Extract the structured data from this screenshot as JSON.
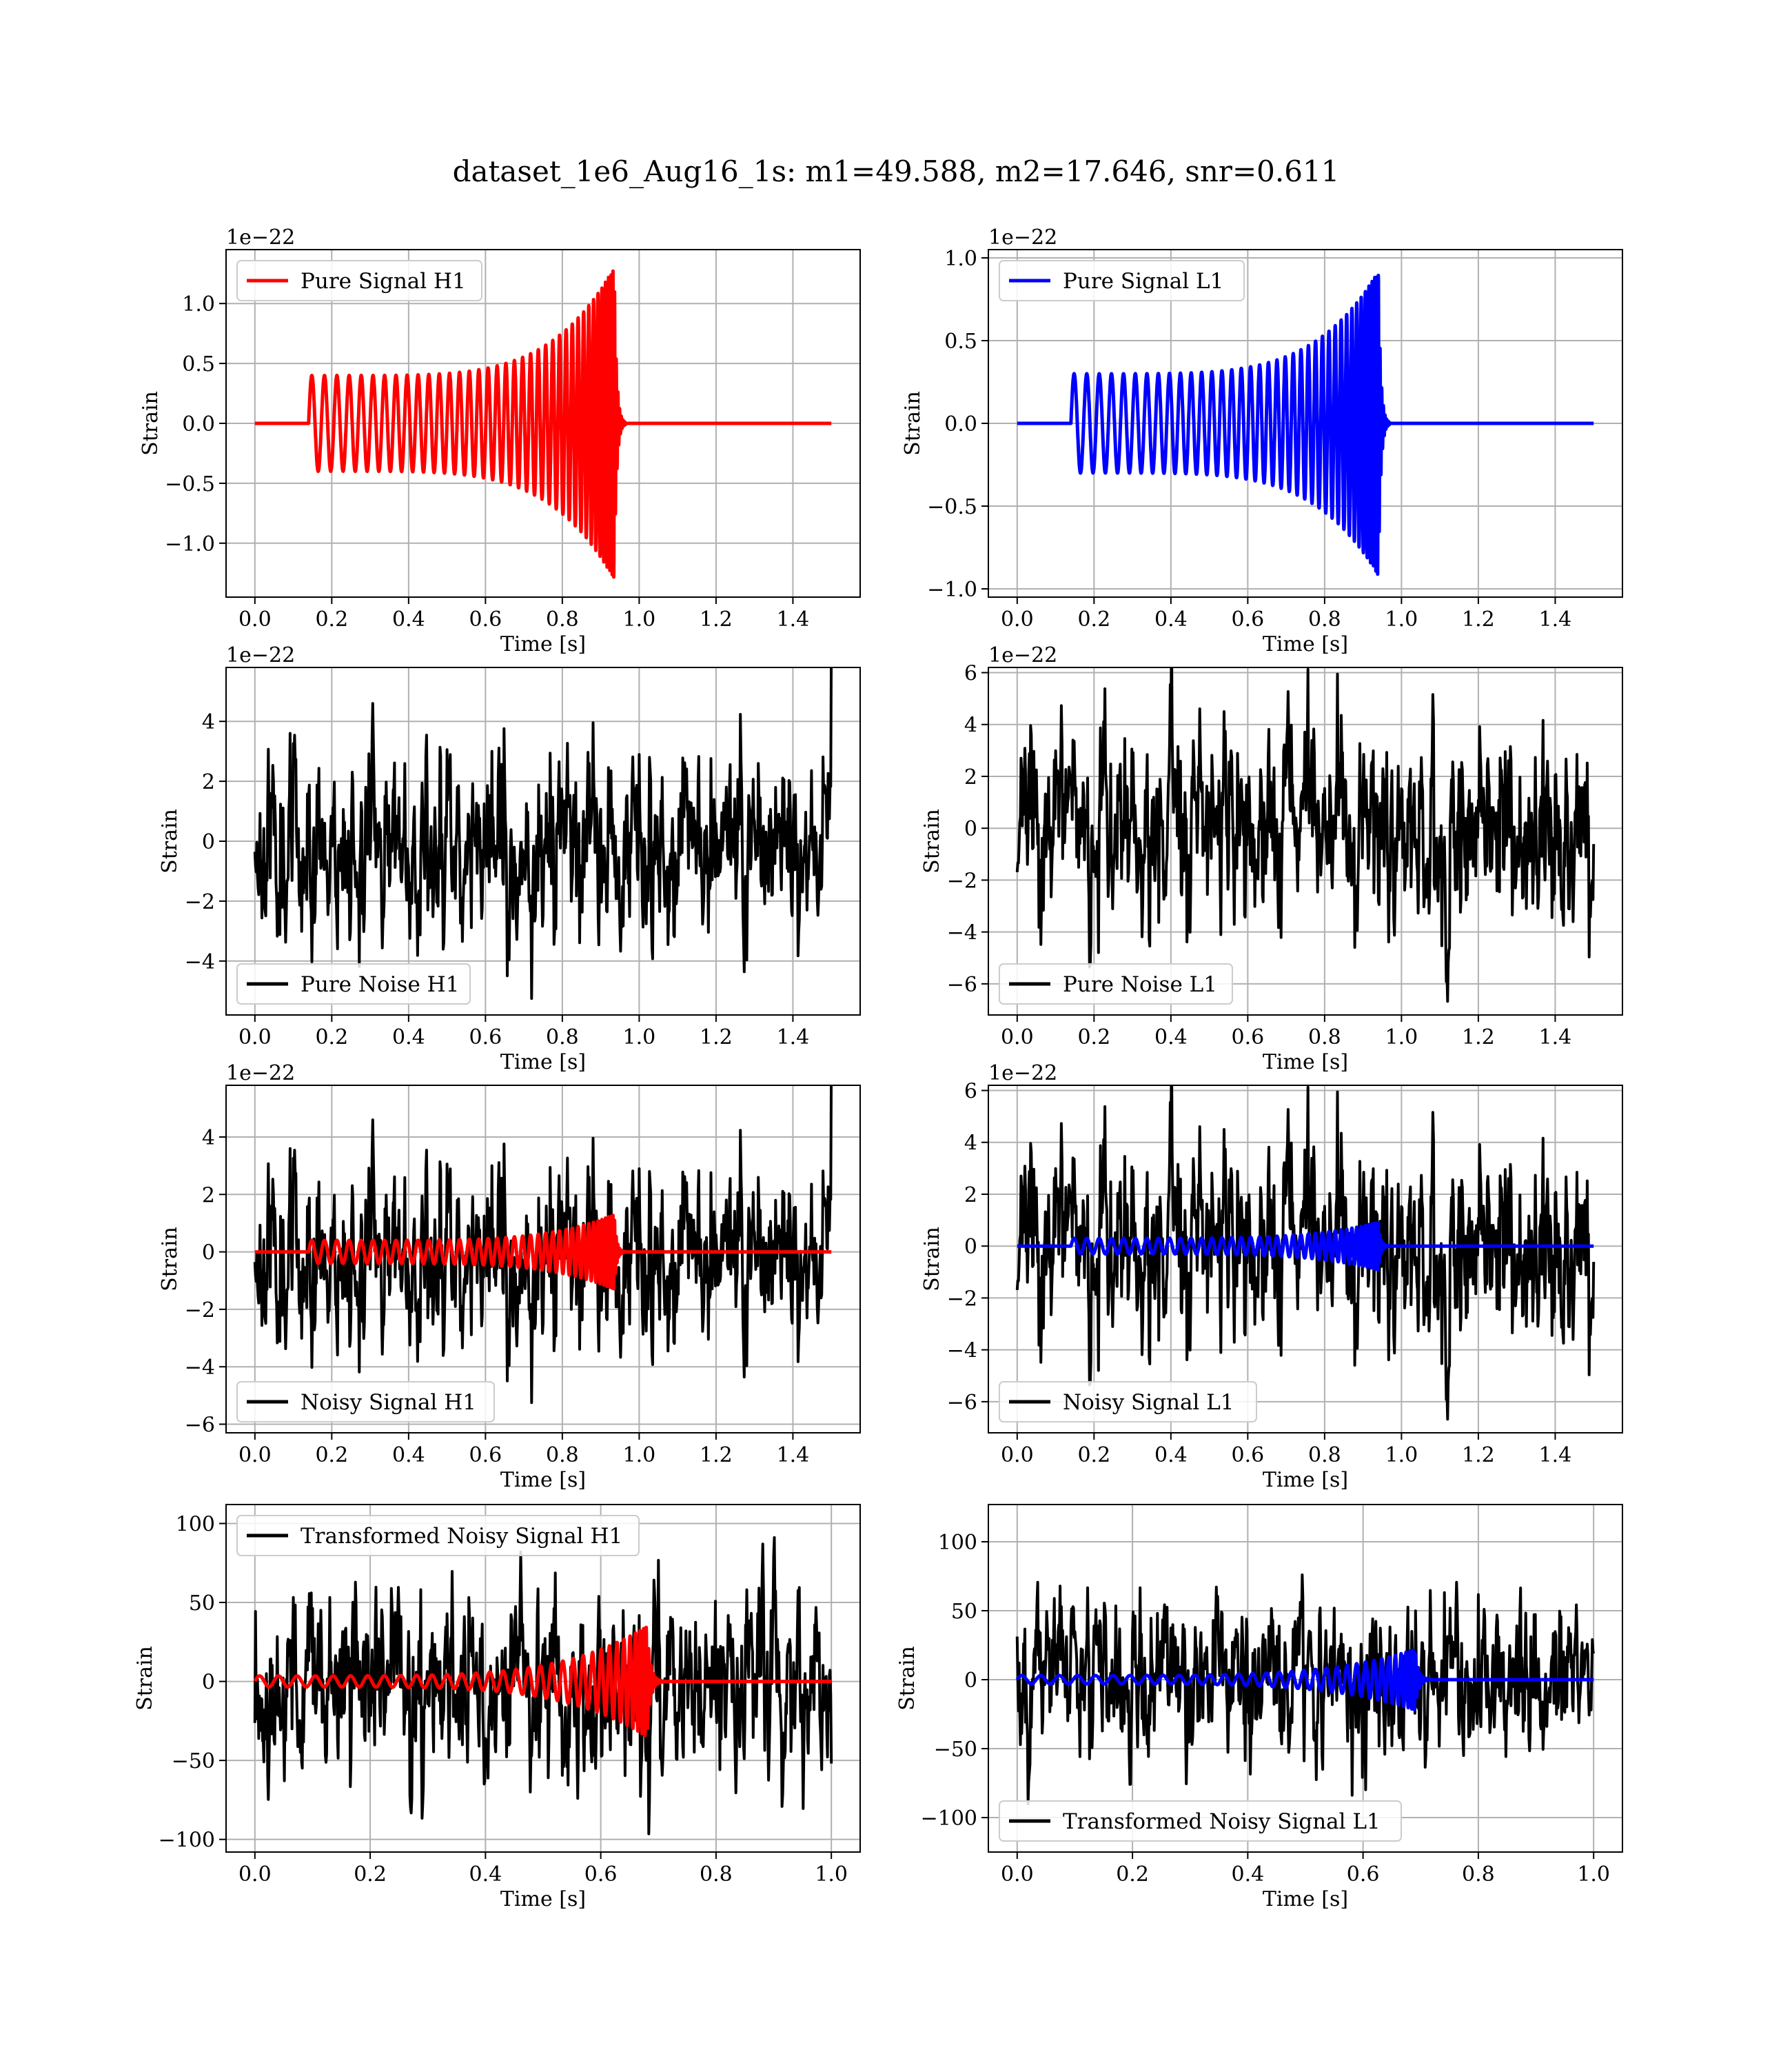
{
  "figure": {
    "title": "dataset_1e6_Aug16_1s: m1=49.588, m2=17.646, snr=0.611"
  },
  "colors": {
    "h1": "#ff0000",
    "l1": "#0000ff",
    "noise": "#000000"
  },
  "chart_data": [
    {
      "id": "pure-h1",
      "type": "line",
      "xlabel": "Time [s]",
      "ylabel": "Strain",
      "offset_text": "1e−22",
      "xlim": [
        -0.075,
        1.575
      ],
      "ylim": [
        -1.45,
        1.45
      ],
      "xticks": [
        0.0,
        0.2,
        0.4,
        0.6,
        0.8,
        1.0,
        1.2,
        1.4
      ],
      "yticks": [
        -1.0,
        -0.5,
        0.0,
        0.5,
        1.0
      ],
      "legend": {
        "position": "upper-left"
      },
      "series": [
        {
          "name": "Pure Signal H1",
          "color": "#ff0000",
          "kind": "chirp",
          "amp": 0.4,
          "peak": 1.3,
          "start": 0.14,
          "merger": 0.935,
          "end": 1.5
        }
      ]
    },
    {
      "id": "pure-l1",
      "type": "line",
      "xlabel": "Time [s]",
      "ylabel": "Strain",
      "offset_text": "1e−22",
      "xlim": [
        -0.075,
        1.575
      ],
      "ylim": [
        -1.05,
        1.05
      ],
      "xticks": [
        0.0,
        0.2,
        0.4,
        0.6,
        0.8,
        1.0,
        1.2,
        1.4
      ],
      "yticks": [
        -1.0,
        -0.5,
        0.0,
        0.5,
        1.0
      ],
      "legend": {
        "position": "upper-left"
      },
      "series": [
        {
          "name": "Pure Signal L1",
          "color": "#0000ff",
          "kind": "chirp",
          "amp": 0.3,
          "peak": 0.92,
          "start": 0.14,
          "merger": 0.94,
          "end": 1.5
        }
      ]
    },
    {
      "id": "noise-h1",
      "type": "line",
      "xlabel": "Time [s]",
      "ylabel": "Strain",
      "offset_text": "1e−22",
      "xlim": [
        -0.075,
        1.575
      ],
      "ylim": [
        -5.8,
        5.8
      ],
      "xticks": [
        0.0,
        0.2,
        0.4,
        0.6,
        0.8,
        1.0,
        1.2,
        1.4
      ],
      "yticks": [
        -4,
        -2,
        0,
        2,
        4
      ],
      "legend": {
        "position": "lower-left"
      },
      "series": [
        {
          "name": "Pure Noise H1",
          "color": "#000000",
          "kind": "noise",
          "sigma": 1.5,
          "seed": 11,
          "n": 900,
          "end": 1.5
        }
      ]
    },
    {
      "id": "noise-l1",
      "type": "line",
      "xlabel": "Time [s]",
      "ylabel": "Strain",
      "offset_text": "1e−22",
      "xlim": [
        -0.075,
        1.575
      ],
      "ylim": [
        -7.2,
        6.2
      ],
      "xticks": [
        0.0,
        0.2,
        0.4,
        0.6,
        0.8,
        1.0,
        1.2,
        1.4
      ],
      "yticks": [
        -6,
        -4,
        -2,
        0,
        2,
        4,
        6
      ],
      "legend": {
        "position": "lower-left"
      },
      "series": [
        {
          "name": "Pure Noise L1",
          "color": "#000000",
          "kind": "noise",
          "sigma": 1.8,
          "seed": 23,
          "n": 900,
          "end": 1.5
        }
      ]
    },
    {
      "id": "noisy-h1",
      "type": "line",
      "xlabel": "Time [s]",
      "ylabel": "Strain",
      "offset_text": "1e−22",
      "xlim": [
        -0.075,
        1.575
      ],
      "ylim": [
        -6.3,
        5.8
      ],
      "xticks": [
        0.0,
        0.2,
        0.4,
        0.6,
        0.8,
        1.0,
        1.2,
        1.4
      ],
      "yticks": [
        -6,
        -4,
        -2,
        0,
        2,
        4
      ],
      "legend": {
        "position": "lower-left"
      },
      "series": [
        {
          "name": "Noisy Signal H1",
          "color": "#000000",
          "kind": "noise",
          "sigma": 1.5,
          "seed": 11,
          "n": 900,
          "end": 1.5
        },
        {
          "color": "#ff0000",
          "kind": "chirp",
          "amp": 0.4,
          "peak": 1.3,
          "start": 0.14,
          "merger": 0.935,
          "end": 1.5
        }
      ]
    },
    {
      "id": "noisy-l1",
      "type": "line",
      "xlabel": "Time [s]",
      "ylabel": "Strain",
      "offset_text": "1e−22",
      "xlim": [
        -0.075,
        1.575
      ],
      "ylim": [
        -7.2,
        6.2
      ],
      "xticks": [
        0.0,
        0.2,
        0.4,
        0.6,
        0.8,
        1.0,
        1.2,
        1.4
      ],
      "yticks": [
        -6,
        -4,
        -2,
        0,
        2,
        4,
        6
      ],
      "legend": {
        "position": "lower-left"
      },
      "series": [
        {
          "name": "Noisy Signal L1",
          "color": "#000000",
          "kind": "noise",
          "sigma": 1.8,
          "seed": 23,
          "n": 900,
          "end": 1.5
        },
        {
          "color": "#0000ff",
          "kind": "chirp",
          "amp": 0.3,
          "peak": 0.92,
          "start": 0.14,
          "merger": 0.94,
          "end": 1.5
        }
      ]
    },
    {
      "id": "trans-h1",
      "type": "line",
      "xlabel": "Time [s]",
      "ylabel": "Strain",
      "offset_text": "",
      "xlim": [
        -0.05,
        1.05
      ],
      "ylim": [
        -108,
        112
      ],
      "xticks": [
        0.0,
        0.2,
        0.4,
        0.6,
        0.8,
        1.0
      ],
      "yticks": [
        -100,
        -50,
        0,
        50,
        100
      ],
      "legend": {
        "position": "upper-left"
      },
      "series": [
        {
          "name": "Transformed Noisy Signal H1",
          "color": "#000000",
          "kind": "noise",
          "sigma": 28,
          "seed": 37,
          "n": 900,
          "end": 1.0
        },
        {
          "color": "#ff0000",
          "kind": "chirp",
          "amp": 3.5,
          "peak": 35,
          "start": 0.0,
          "merger": 0.68,
          "end": 1.0
        }
      ]
    },
    {
      "id": "trans-l1",
      "type": "line",
      "xlabel": "Time [s]",
      "ylabel": "Strain",
      "offset_text": "",
      "xlim": [
        -0.05,
        1.05
      ],
      "ylim": [
        -125,
        127
      ],
      "xticks": [
        0.0,
        0.2,
        0.4,
        0.6,
        0.8,
        1.0
      ],
      "yticks": [
        -100,
        -50,
        0,
        50,
        100
      ],
      "legend": {
        "position": "lower-left"
      },
      "series": [
        {
          "name": "Transformed Noisy Signal L1",
          "color": "#000000",
          "kind": "noise",
          "sigma": 27,
          "seed": 51,
          "n": 900,
          "end": 1.0
        },
        {
          "color": "#0000ff",
          "kind": "chirp",
          "amp": 3.0,
          "peak": 22,
          "start": 0.0,
          "merger": 0.69,
          "end": 1.0
        }
      ]
    }
  ]
}
